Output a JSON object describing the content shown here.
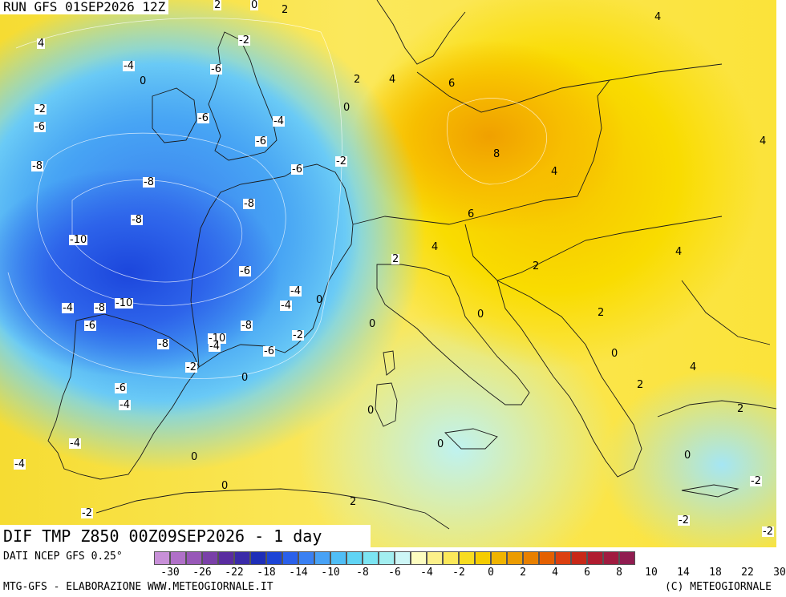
{
  "header": {
    "run_label": "RUN GFS 01SEP2026 12Z"
  },
  "title": {
    "text": "DIF TMP Z850 00Z09SEP2026 - 1 day"
  },
  "footer": {
    "data_source": "DATI NCEP GFS 0.25°",
    "credit_left": "MTG-GFS - ELABORAZIONE WWW.METEOGIORNALE.IT",
    "credit_right": "(C) METEOGIORNALE"
  },
  "legend": {
    "colors": [
      "#c890d8",
      "#b070c8",
      "#9858b8",
      "#7a40a8",
      "#5a2ca0",
      "#3a2aa8",
      "#1e2eb8",
      "#1c44d6",
      "#2a60ea",
      "#3a80f2",
      "#48a2f6",
      "#50bef6",
      "#60d4f4",
      "#7ce4f2",
      "#a2eef0",
      "#cdf6f6",
      "#fdfdc0",
      "#fcf08a",
      "#fbe85a",
      "#f8dc20",
      "#f5cc00",
      "#f0b400",
      "#ec9c00",
      "#e88000",
      "#e46000",
      "#dc4010",
      "#c82818",
      "#b01c30",
      "#a01c40",
      "#901c50"
    ],
    "tick_labels": [
      "-30",
      "-26",
      "-22",
      "-18",
      "-14",
      "-10",
      "-8",
      "-6",
      "-4",
      "-2",
      "0",
      "2",
      "4",
      "6",
      "8",
      "10",
      "14",
      "18",
      "22",
      "30"
    ]
  },
  "contour_labels": [
    {
      "text": "0",
      "boxed": true
    },
    {
      "text": "2",
      "boxed": false
    },
    {
      "text": "2",
      "boxed": true
    },
    {
      "text": "4",
      "boxed": false
    },
    {
      "text": "4",
      "boxed": true
    },
    {
      "text": "-2",
      "boxed": true
    },
    {
      "text": "-4",
      "boxed": true
    },
    {
      "text": "-6",
      "boxed": true
    },
    {
      "text": "0",
      "boxed": false
    },
    {
      "text": "2",
      "boxed": false
    },
    {
      "text": "4",
      "boxed": false
    },
    {
      "text": "6",
      "boxed": false
    },
    {
      "text": "-2",
      "boxed": true
    },
    {
      "text": "-6",
      "boxed": true
    },
    {
      "text": "0",
      "boxed": false
    },
    {
      "text": "-6",
      "boxed": true
    },
    {
      "text": "-4",
      "boxed": true
    },
    {
      "text": "-6",
      "boxed": true
    },
    {
      "text": "-8",
      "boxed": true
    },
    {
      "text": "-8",
      "boxed": true
    },
    {
      "text": "-2",
      "boxed": true
    },
    {
      "text": "-6",
      "boxed": true
    },
    {
      "text": "8",
      "boxed": false
    },
    {
      "text": "4",
      "boxed": false
    },
    {
      "text": "4",
      "boxed": false
    },
    {
      "text": "-8",
      "boxed": true
    },
    {
      "text": "-8",
      "boxed": true
    },
    {
      "text": "6",
      "boxed": false
    },
    {
      "text": "-10",
      "boxed": true
    },
    {
      "text": "2",
      "boxed": true
    },
    {
      "text": "4",
      "boxed": false
    },
    {
      "text": "4",
      "boxed": false
    },
    {
      "text": "-6",
      "boxed": true
    },
    {
      "text": "2",
      "boxed": false
    },
    {
      "text": "-4",
      "boxed": true
    },
    {
      "text": "-4",
      "boxed": true
    },
    {
      "text": "-8",
      "boxed": true
    },
    {
      "text": "-10",
      "boxed": true
    },
    {
      "text": "0",
      "boxed": false
    },
    {
      "text": "-4",
      "boxed": true
    },
    {
      "text": "0",
      "boxed": false
    },
    {
      "text": "2",
      "boxed": false
    },
    {
      "text": "-6",
      "boxed": true
    },
    {
      "text": "-8",
      "boxed": true
    },
    {
      "text": "0",
      "boxed": false
    },
    {
      "text": "-2",
      "boxed": true
    },
    {
      "text": "-8",
      "boxed": true
    },
    {
      "text": "-10",
      "boxed": true
    },
    {
      "text": "-4",
      "boxed": true
    },
    {
      "text": "-6",
      "boxed": true
    },
    {
      "text": "0",
      "boxed": false
    },
    {
      "text": "-2",
      "boxed": true
    },
    {
      "text": "0",
      "boxed": false
    },
    {
      "text": "4",
      "boxed": false
    },
    {
      "text": "2",
      "boxed": false
    },
    {
      "text": "-6",
      "boxed": true
    },
    {
      "text": "-4",
      "boxed": true
    },
    {
      "text": "0",
      "boxed": false
    },
    {
      "text": "2",
      "boxed": false
    },
    {
      "text": "-4",
      "boxed": true
    },
    {
      "text": "0",
      "boxed": false
    },
    {
      "text": "-4",
      "boxed": true
    },
    {
      "text": "0",
      "boxed": false
    },
    {
      "text": "0",
      "boxed": false
    },
    {
      "text": "-2",
      "boxed": true
    },
    {
      "text": "0",
      "boxed": false
    },
    {
      "text": "2",
      "boxed": false
    },
    {
      "text": "-2",
      "boxed": true
    },
    {
      "text": "-2",
      "boxed": true
    },
    {
      "text": "-2",
      "boxed": true
    }
  ]
}
